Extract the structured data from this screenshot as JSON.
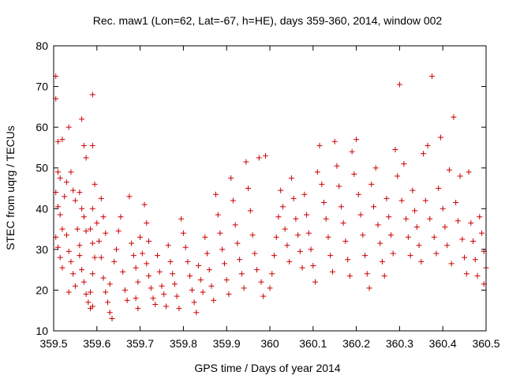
{
  "chart_data": {
    "type": "scatter",
    "title": "Rec. maw1 (Lon=62, Lat=-67, h=HE), days 359-360, 2014, window 002",
    "xlabel": "GPS time / Days of year 2014",
    "ylabel": "STEC from uqrg / TECUs",
    "xlim": [
      359.5,
      360.5
    ],
    "ylim": [
      10,
      80
    ],
    "x_ticks": [
      359.5,
      359.6,
      359.7,
      359.8,
      359.9,
      360.0,
      360.1,
      360.2,
      360.3,
      360.4,
      360.5
    ],
    "x_tick_labels": [
      "359.5",
      "359.6",
      "359.7",
      "359.8",
      "359.9",
      "360",
      "360.1",
      "360.2",
      "360.3",
      "360.4",
      "360.5"
    ],
    "y_ticks": [
      10,
      20,
      30,
      40,
      50,
      60,
      70,
      80
    ],
    "y_tick_labels": [
      "10",
      "20",
      "30",
      "40",
      "50",
      "60",
      "70",
      "80"
    ],
    "grid": false,
    "marker": "+",
    "color": "#cc0000",
    "series": [
      {
        "name": "STEC",
        "points": [
          [
            359.505,
            72.5
          ],
          [
            359.505,
            67.0
          ],
          [
            359.51,
            56.5
          ],
          [
            359.51,
            49.0
          ],
          [
            359.515,
            47.5
          ],
          [
            359.52,
            57.0
          ],
          [
            359.505,
            44.0
          ],
          [
            359.51,
            40.5
          ],
          [
            359.515,
            38.5
          ],
          [
            359.52,
            35.0
          ],
          [
            359.505,
            33.0
          ],
          [
            359.51,
            30.5
          ],
          [
            359.515,
            28.0
          ],
          [
            359.52,
            25.5
          ],
          [
            359.525,
            43.0
          ],
          [
            359.53,
            46.5
          ],
          [
            359.535,
            60.0
          ],
          [
            359.54,
            49.0
          ],
          [
            359.545,
            44.5
          ],
          [
            359.55,
            42.0
          ],
          [
            359.53,
            33.5
          ],
          [
            359.535,
            29.5
          ],
          [
            359.54,
            27.0
          ],
          [
            359.545,
            24.0
          ],
          [
            359.55,
            21.0
          ],
          [
            359.535,
            19.5
          ],
          [
            359.555,
            35.0
          ],
          [
            359.56,
            31.0
          ],
          [
            359.565,
            62.0
          ],
          [
            359.57,
            55.5
          ],
          [
            359.575,
            52.5
          ],
          [
            359.56,
            44.0
          ],
          [
            359.565,
            40.0
          ],
          [
            359.57,
            38.0
          ],
          [
            359.575,
            34.5
          ],
          [
            359.56,
            28.5
          ],
          [
            359.565,
            25.0
          ],
          [
            359.57,
            22.0
          ],
          [
            359.575,
            19.0
          ],
          [
            359.58,
            17.0
          ],
          [
            359.585,
            15.5
          ],
          [
            359.59,
            68.0
          ],
          [
            359.59,
            55.5
          ],
          [
            359.595,
            46.0
          ],
          [
            359.59,
            40.0
          ],
          [
            359.585,
            35.0
          ],
          [
            359.59,
            31.5
          ],
          [
            359.595,
            28.0
          ],
          [
            359.59,
            24.0
          ],
          [
            359.585,
            19.5
          ],
          [
            359.59,
            16.0
          ],
          [
            359.6,
            36.5
          ],
          [
            359.605,
            32.0
          ],
          [
            359.61,
            42.5
          ],
          [
            359.615,
            38.0
          ],
          [
            359.62,
            34.0
          ],
          [
            359.61,
            28.0
          ],
          [
            359.615,
            23.0
          ],
          [
            359.62,
            19.5
          ],
          [
            359.625,
            17.0
          ],
          [
            359.63,
            14.5
          ],
          [
            359.635,
            13.0
          ],
          [
            359.63,
            21.5
          ],
          [
            359.64,
            27.0
          ],
          [
            359.645,
            30.0
          ],
          [
            359.65,
            34.5
          ],
          [
            359.655,
            38.0
          ],
          [
            359.66,
            24.5
          ],
          [
            359.665,
            20.0
          ],
          [
            359.67,
            17.5
          ],
          [
            359.675,
            43.0
          ],
          [
            359.68,
            31.5
          ],
          [
            359.685,
            28.5
          ],
          [
            359.69,
            25.5
          ],
          [
            359.695,
            22.0
          ],
          [
            359.69,
            18.0
          ],
          [
            359.695,
            15.5
          ],
          [
            359.7,
            33.0
          ],
          [
            359.705,
            29.0
          ],
          [
            359.71,
            41.0
          ],
          [
            359.715,
            36.5
          ],
          [
            359.72,
            32.0
          ],
          [
            359.715,
            26.5
          ],
          [
            359.72,
            23.5
          ],
          [
            359.725,
            20.5
          ],
          [
            359.73,
            18.0
          ],
          [
            359.735,
            16.5
          ],
          [
            359.74,
            28.5
          ],
          [
            359.745,
            24.5
          ],
          [
            359.75,
            21.0
          ],
          [
            359.755,
            19.0
          ],
          [
            359.76,
            16.0
          ],
          [
            359.765,
            31.0
          ],
          [
            359.77,
            27.0
          ],
          [
            359.775,
            24.0
          ],
          [
            359.78,
            21.5
          ],
          [
            359.785,
            18.5
          ],
          [
            359.79,
            15.5
          ],
          [
            359.795,
            37.5
          ],
          [
            359.8,
            34.0
          ],
          [
            359.805,
            30.5
          ],
          [
            359.81,
            27.0
          ],
          [
            359.815,
            23.5
          ],
          [
            359.82,
            20.0
          ],
          [
            359.825,
            17.0
          ],
          [
            359.83,
            14.5
          ],
          [
            359.835,
            26.0
          ],
          [
            359.84,
            22.5
          ],
          [
            359.845,
            19.5
          ],
          [
            359.85,
            33.0
          ],
          [
            359.855,
            29.0
          ],
          [
            359.86,
            25.0
          ],
          [
            359.865,
            21.0
          ],
          [
            359.87,
            17.5
          ],
          [
            359.875,
            43.5
          ],
          [
            359.88,
            38.5
          ],
          [
            359.885,
            34.0
          ],
          [
            359.89,
            30.0
          ],
          [
            359.895,
            26.5
          ],
          [
            359.9,
            22.5
          ],
          [
            359.905,
            19.0
          ],
          [
            359.91,
            47.5
          ],
          [
            359.915,
            42.0
          ],
          [
            359.92,
            36.0
          ],
          [
            359.925,
            31.5
          ],
          [
            359.93,
            27.5
          ],
          [
            359.935,
            24.0
          ],
          [
            359.94,
            20.5
          ],
          [
            359.945,
            51.5
          ],
          [
            359.95,
            45.0
          ],
          [
            359.955,
            39.5
          ],
          [
            359.96,
            33.5
          ],
          [
            359.965,
            29.0
          ],
          [
            359.97,
            25.0
          ],
          [
            359.975,
            52.5
          ],
          [
            359.98,
            22.0
          ],
          [
            359.985,
            18.5
          ],
          [
            359.99,
            53.0
          ],
          [
            360.0,
            20.5
          ],
          [
            360.005,
            24.0
          ],
          [
            360.01,
            28.5
          ],
          [
            360.015,
            33.0
          ],
          [
            360.02,
            38.0
          ],
          [
            360.025,
            44.5
          ],
          [
            360.03,
            40.5
          ],
          [
            360.035,
            35.0
          ],
          [
            360.04,
            31.0
          ],
          [
            360.045,
            27.0
          ],
          [
            360.05,
            47.5
          ],
          [
            360.055,
            42.5
          ],
          [
            360.06,
            37.5
          ],
          [
            360.065,
            33.5
          ],
          [
            360.07,
            29.5
          ],
          [
            360.075,
            25.5
          ],
          [
            360.08,
            43.5
          ],
          [
            360.085,
            38.5
          ],
          [
            360.09,
            34.0
          ],
          [
            360.095,
            30.0
          ],
          [
            360.1,
            26.0
          ],
          [
            360.105,
            22.0
          ],
          [
            360.11,
            49.0
          ],
          [
            360.115,
            55.5
          ],
          [
            360.12,
            46.0
          ],
          [
            360.125,
            41.5
          ],
          [
            360.13,
            37.5
          ],
          [
            360.135,
            33.0
          ],
          [
            360.14,
            28.5
          ],
          [
            360.145,
            24.5
          ],
          [
            360.15,
            56.5
          ],
          [
            360.155,
            50.5
          ],
          [
            360.16,
            45.5
          ],
          [
            360.165,
            40.5
          ],
          [
            360.17,
            36.5
          ],
          [
            360.175,
            32.0
          ],
          [
            360.18,
            27.5
          ],
          [
            360.185,
            23.5
          ],
          [
            360.19,
            54.0
          ],
          [
            360.195,
            48.5
          ],
          [
            360.2,
            57.0
          ],
          [
            360.205,
            43.5
          ],
          [
            360.21,
            38.5
          ],
          [
            360.215,
            33.5
          ],
          [
            360.22,
            28.5
          ],
          [
            360.225,
            24.0
          ],
          [
            360.23,
            20.5
          ],
          [
            360.235,
            46.0
          ],
          [
            360.24,
            40.5
          ],
          [
            360.245,
            50.0
          ],
          [
            360.25,
            36.0
          ],
          [
            360.255,
            31.5
          ],
          [
            360.26,
            27.0
          ],
          [
            360.265,
            23.5
          ],
          [
            360.27,
            42.5
          ],
          [
            360.275,
            38.0
          ],
          [
            360.28,
            33.5
          ],
          [
            360.285,
            29.0
          ],
          [
            360.29,
            54.5
          ],
          [
            360.295,
            48.0
          ],
          [
            360.3,
            70.5
          ],
          [
            360.305,
            42.0
          ],
          [
            360.31,
            51.0
          ],
          [
            360.315,
            37.5
          ],
          [
            360.32,
            33.0
          ],
          [
            360.325,
            28.5
          ],
          [
            360.33,
            44.5
          ],
          [
            360.335,
            39.5
          ],
          [
            360.34,
            35.5
          ],
          [
            360.345,
            31.0
          ],
          [
            360.35,
            27.0
          ],
          [
            360.355,
            53.5
          ],
          [
            360.36,
            42.0
          ],
          [
            360.365,
            55.5
          ],
          [
            360.37,
            37.5
          ],
          [
            360.375,
            72.5
          ],
          [
            360.38,
            33.0
          ],
          [
            360.385,
            29.0
          ],
          [
            360.39,
            45.0
          ],
          [
            360.395,
            57.5
          ],
          [
            360.4,
            40.0
          ],
          [
            360.405,
            35.5
          ],
          [
            360.41,
            31.0
          ],
          [
            360.415,
            49.5
          ],
          [
            360.42,
            26.5
          ],
          [
            360.425,
            62.5
          ],
          [
            360.43,
            41.5
          ],
          [
            360.435,
            37.0
          ],
          [
            360.44,
            48.0
          ],
          [
            360.445,
            32.5
          ],
          [
            360.45,
            28.0
          ],
          [
            360.455,
            24.0
          ],
          [
            360.46,
            49.0
          ],
          [
            360.465,
            36.5
          ],
          [
            360.47,
            32.0
          ],
          [
            360.475,
            27.5
          ],
          [
            360.48,
            23.5
          ],
          [
            360.485,
            38.0
          ],
          [
            360.49,
            34.0
          ],
          [
            360.495,
            29.5
          ],
          [
            360.5,
            25.5
          ],
          [
            360.495,
            21.5
          ]
        ]
      }
    ]
  }
}
